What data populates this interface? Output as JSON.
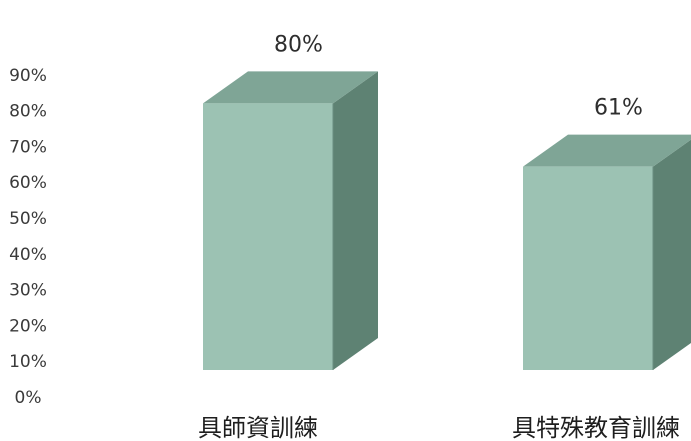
{
  "chart_data": {
    "type": "bar",
    "categories": [
      "具師資訓練",
      "具特殊教育訓練"
    ],
    "values": [
      80,
      61
    ],
    "data_labels": [
      "80%",
      "61%"
    ],
    "ylim": [
      0,
      90
    ],
    "y_ticks": [
      "0%",
      "10%",
      "20%",
      "30%",
      "40%",
      "50%",
      "60%",
      "70%",
      "80%",
      "90%"
    ],
    "grid": false,
    "legend": "none",
    "colors": {
      "front": "#9cc2b3",
      "top": "#7fa596",
      "side": "#5e8273",
      "edge": "#6a8e80"
    }
  }
}
